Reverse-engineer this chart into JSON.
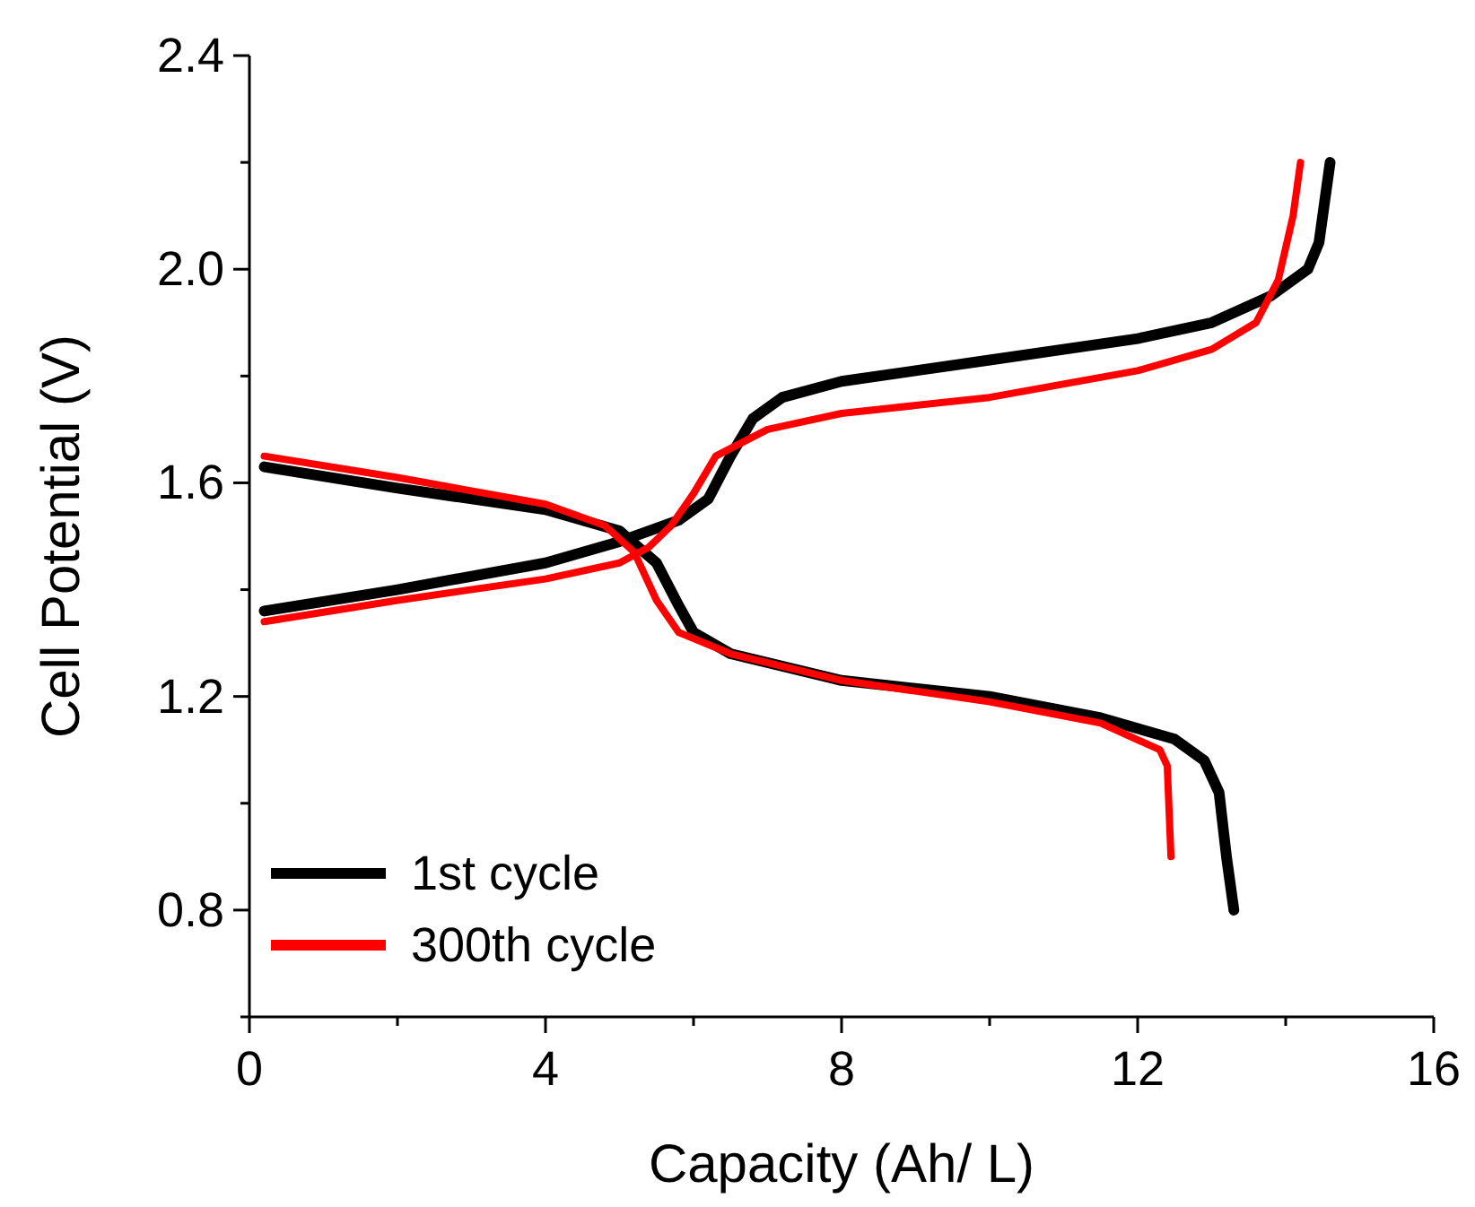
{
  "chart_data": {
    "type": "line",
    "xlabel": "Capacity (Ah/ L)",
    "ylabel": "Cell Potential (V)",
    "xlim": [
      0,
      16
    ],
    "ylim": [
      0.6,
      2.4
    ],
    "xticks": [
      0,
      {
        "value": 2,
        "label": null
      },
      4,
      {
        "value": 6,
        "label": null
      },
      8,
      {
        "value": 10,
        "label": null
      },
      12,
      {
        "value": 14,
        "label": null
      },
      16
    ],
    "yticks": [
      {
        "value": 0.6,
        "label": null
      },
      0.8,
      {
        "value": 1.0,
        "label": null
      },
      1.2,
      {
        "value": 1.4,
        "label": null
      },
      1.6,
      {
        "value": 1.8,
        "label": null
      },
      {
        "value": 2.0,
        "label": "2.0"
      },
      {
        "value": 2.2,
        "label": null
      },
      2.4
    ],
    "legend": "bottom left",
    "grid": false,
    "marker": "none",
    "line_style": "solid",
    "series": [
      {
        "name": "1st cycle",
        "color": "#000000",
        "x": [
          0.2,
          2,
          4,
          5,
          5.8,
          6.2,
          6.5,
          6.8,
          7.2,
          8,
          10,
          12,
          13,
          13.8,
          14.3,
          14.45,
          14.6,
          null,
          0.2,
          2,
          4,
          5,
          5.5,
          5.8,
          6,
          6.5,
          8,
          10,
          11.5,
          12.5,
          12.9,
          13.1,
          13.2,
          13.3
        ],
        "values": [
          1.36,
          1.4,
          1.45,
          1.49,
          1.53,
          1.57,
          1.65,
          1.72,
          1.76,
          1.79,
          1.83,
          1.87,
          1.9,
          1.95,
          2.0,
          2.05,
          2.2,
          null,
          1.63,
          1.59,
          1.55,
          1.51,
          1.45,
          1.37,
          1.32,
          1.28,
          1.23,
          1.2,
          1.16,
          1.12,
          1.08,
          1.02,
          0.9,
          0.8
        ]
      },
      {
        "name": "300th cycle",
        "color": "#ff0000",
        "x": [
          0.2,
          2,
          4,
          5,
          5.4,
          5.7,
          6,
          6.3,
          7,
          8,
          10,
          12,
          13,
          13.6,
          13.9,
          14.1,
          14.2,
          null,
          0.2,
          2,
          4,
          4.8,
          5.2,
          5.5,
          5.8,
          6.5,
          8,
          10,
          11.5,
          12.3,
          12.4,
          12.45
        ],
        "values": [
          1.34,
          1.38,
          1.42,
          1.45,
          1.48,
          1.52,
          1.58,
          1.65,
          1.7,
          1.73,
          1.76,
          1.81,
          1.85,
          1.9,
          1.98,
          2.1,
          2.2,
          null,
          1.65,
          1.61,
          1.56,
          1.52,
          1.47,
          1.38,
          1.32,
          1.28,
          1.23,
          1.19,
          1.15,
          1.1,
          1.07,
          0.9
        ]
      }
    ]
  }
}
